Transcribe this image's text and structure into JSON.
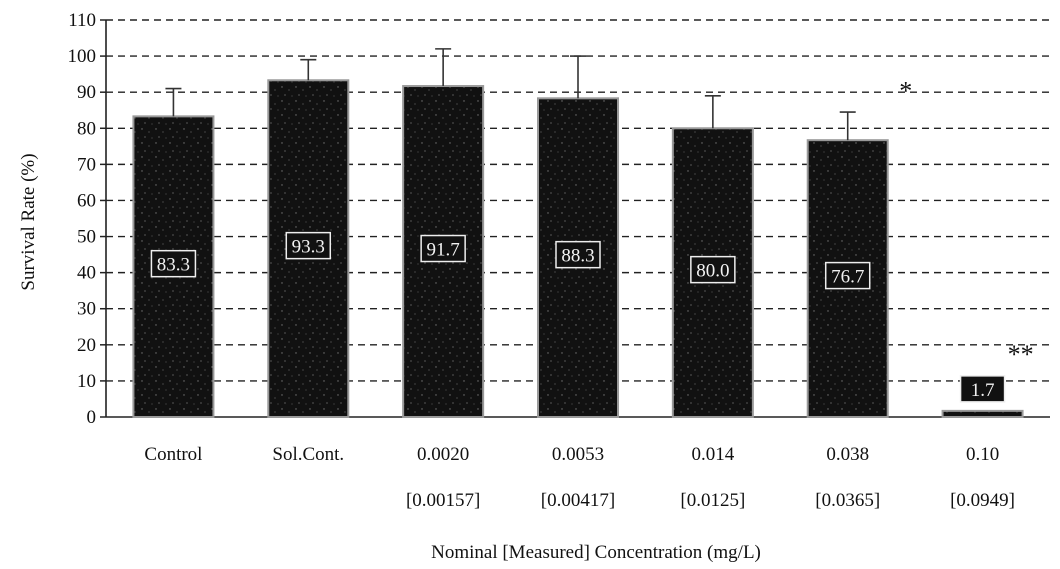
{
  "chart_data": {
    "type": "bar",
    "title": "",
    "xlabel": "Nominal [Measured] Concentration (mg/L)",
    "ylabel": "Survival Rate (%)",
    "ylim": [
      0,
      110
    ],
    "yticks": [
      0,
      10,
      20,
      30,
      40,
      50,
      60,
      70,
      80,
      90,
      100,
      110
    ],
    "grid": "horizontal-dashed",
    "categories": [
      "Control",
      "Sol.Cont.",
      "0.0020",
      "0.0053",
      "0.014",
      "0.038",
      "0.10"
    ],
    "sublabels": [
      "",
      "",
      "[0.00157]",
      "[0.00417]",
      "[0.0125]",
      "[0.0365]",
      "[0.0949]"
    ],
    "values": [
      83.3,
      93.3,
      91.7,
      88.3,
      80.0,
      76.7,
      1.7
    ],
    "data_labels": [
      "83.3",
      "93.3",
      "91.7",
      "88.3",
      "80.0",
      "76.7",
      "1.7"
    ],
    "error_upper": [
      91,
      99,
      102,
      100,
      89,
      84.5,
      null
    ],
    "significance": [
      "",
      "",
      "",
      "",
      "",
      "*",
      "**"
    ],
    "bar_color": "#111111",
    "bar_edge_color": "#999999"
  }
}
